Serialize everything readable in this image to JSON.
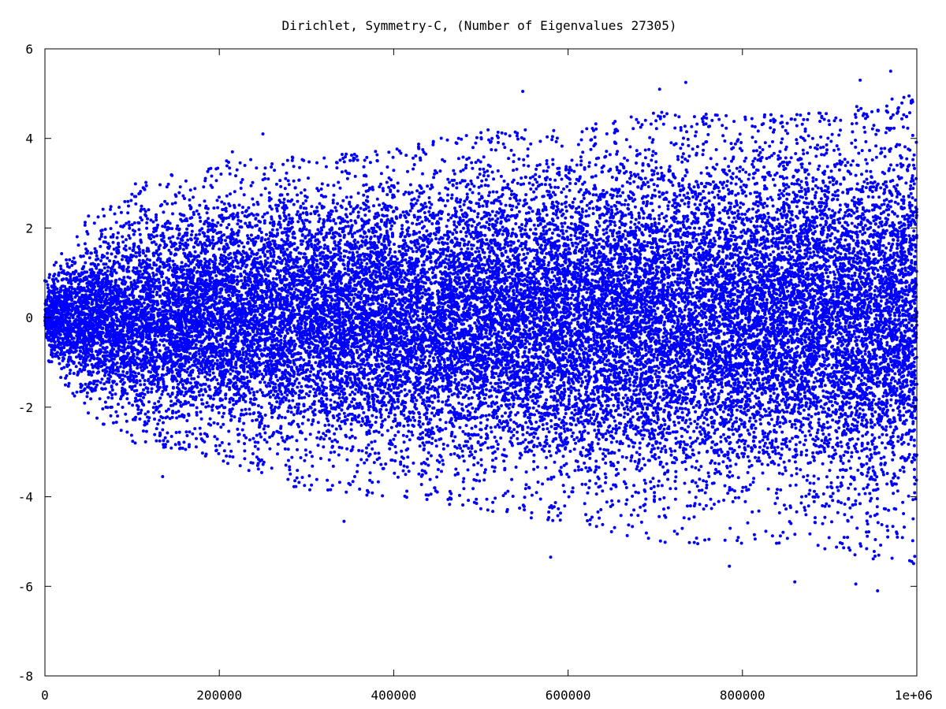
{
  "chart_data": {
    "type": "scatter",
    "title": "Dirichlet, Symmetry-C, (Number of Eigenvalues 27305)",
    "xlabel": "",
    "ylabel": "",
    "xlim": [
      0,
      1000000
    ],
    "ylim": [
      -8,
      6
    ],
    "x_ticks": [
      {
        "value": 0,
        "label": "0"
      },
      {
        "value": 200000,
        "label": "200000"
      },
      {
        "value": 400000,
        "label": "400000"
      },
      {
        "value": 600000,
        "label": "600000"
      },
      {
        "value": 800000,
        "label": "800000"
      },
      {
        "value": 1000000,
        "label": "1e+06"
      }
    ],
    "y_ticks": [
      {
        "value": -8,
        "label": "-8"
      },
      {
        "value": -6,
        "label": "-6"
      },
      {
        "value": -4,
        "label": "-4"
      },
      {
        "value": -2,
        "label": "-2"
      },
      {
        "value": 0,
        "label": "0"
      },
      {
        "value": 2,
        "label": "2"
      },
      {
        "value": 4,
        "label": "4"
      },
      {
        "value": 6,
        "label": "6"
      }
    ],
    "grid": false,
    "legend": "none",
    "point_color": "#0000ff",
    "point_count": 27305,
    "series": [
      {
        "name": "",
        "notable_points": [
          {
            "x": 970000,
            "y": 5.5
          },
          {
            "x": 955000,
            "y": -6.1
          },
          {
            "x": 860000,
            "y": -5.9
          },
          {
            "x": 930000,
            "y": -5.95
          },
          {
            "x": 935000,
            "y": 5.3
          },
          {
            "x": 735000,
            "y": 5.25
          },
          {
            "x": 705000,
            "y": 5.1
          },
          {
            "x": 548000,
            "y": 5.05
          },
          {
            "x": 785000,
            "y": -5.55
          },
          {
            "x": 580000,
            "y": -5.35
          },
          {
            "x": 250000,
            "y": 4.1
          },
          {
            "x": 215000,
            "y": 3.7
          },
          {
            "x": 135000,
            "y": -3.55
          },
          {
            "x": 343000,
            "y": -4.55
          }
        ],
        "envelope": [
          {
            "x": 0,
            "min": -0.9,
            "max": 0.9
          },
          {
            "x": 50000,
            "min": -2.2,
            "max": 2.3
          },
          {
            "x": 100000,
            "min": -2.8,
            "max": 3.0
          },
          {
            "x": 200000,
            "min": -3.2,
            "max": 3.5
          },
          {
            "x": 300000,
            "min": -3.9,
            "max": 3.6
          },
          {
            "x": 400000,
            "min": -4.0,
            "max": 3.8
          },
          {
            "x": 500000,
            "min": -4.3,
            "max": 4.2
          },
          {
            "x": 600000,
            "min": -4.6,
            "max": 4.2
          },
          {
            "x": 700000,
            "min": -5.0,
            "max": 4.6
          },
          {
            "x": 800000,
            "min": -5.2,
            "max": 4.5
          },
          {
            "x": 900000,
            "min": -5.2,
            "max": 4.6
          },
          {
            "x": 1000000,
            "min": -5.6,
            "max": 5.0
          }
        ]
      }
    ]
  }
}
